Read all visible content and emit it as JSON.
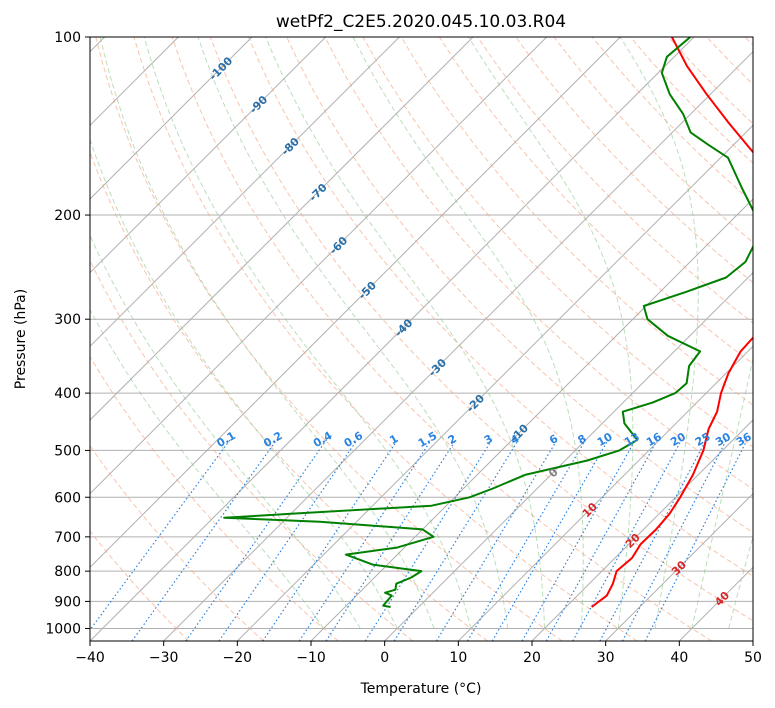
{
  "chart_data": {
    "type": "line",
    "title": "wetPf2_C2E5.2020.045.10.03.R04",
    "xlabel": "Temperature (°C)",
    "ylabel": "Pressure (hPa)",
    "xlim": [
      -40,
      50
    ],
    "ylim": [
      1050,
      100
    ],
    "x_ticks": [
      -40,
      -30,
      -20,
      -10,
      0,
      10,
      20,
      30,
      40,
      50
    ],
    "y_ticks": [
      100,
      200,
      300,
      400,
      500,
      600,
      700,
      800,
      900,
      1000
    ],
    "grid": true,
    "series": [
      {
        "name": "Temperature",
        "color": "#ff0000",
        "points": [
          [
            23.5,
            920
          ],
          [
            24.0,
            880
          ],
          [
            23.2,
            840
          ],
          [
            22.0,
            800
          ],
          [
            22.3,
            760
          ],
          [
            21.6,
            720
          ],
          [
            21.7,
            680
          ],
          [
            21.4,
            640
          ],
          [
            20.6,
            600
          ],
          [
            19.3,
            550
          ],
          [
            17.4,
            500
          ],
          [
            15.2,
            460
          ],
          [
            14.0,
            430
          ],
          [
            12.0,
            400
          ],
          [
            10.3,
            370
          ],
          [
            9.0,
            340
          ],
          [
            8.8,
            320
          ],
          [
            9.3,
            300
          ],
          [
            7.8,
            280
          ],
          [
            4.8,
            260
          ],
          [
            1.5,
            240
          ],
          [
            -2.0,
            220
          ],
          [
            -4.5,
            200
          ],
          [
            -7.0,
            185
          ],
          [
            -11.0,
            170
          ],
          [
            -17.0,
            155
          ],
          [
            -23.5,
            140
          ],
          [
            -30.5,
            125
          ],
          [
            -37.0,
            112
          ],
          [
            -43.0,
            100
          ]
        ]
      },
      {
        "name": "Dewpoint",
        "color": "#008000",
        "points": [
          [
            -3.8,
            920
          ],
          [
            -5.0,
            915
          ],
          [
            -5.2,
            880
          ],
          [
            -6.5,
            870
          ],
          [
            -5.5,
            860
          ],
          [
            -6.2,
            840
          ],
          [
            -5.0,
            820
          ],
          [
            -4.5,
            800
          ],
          [
            -12.0,
            780
          ],
          [
            -17.0,
            750
          ],
          [
            -11.0,
            730
          ],
          [
            -7.5,
            700
          ],
          [
            -10.0,
            680
          ],
          [
            -25.0,
            660
          ],
          [
            -38.5,
            650
          ],
          [
            -30.0,
            640
          ],
          [
            -12.0,
            620
          ],
          [
            -8.0,
            600
          ],
          [
            -6.0,
            580
          ],
          [
            -3.5,
            550
          ],
          [
            3.0,
            520
          ],
          [
            6.0,
            500
          ],
          [
            7.0,
            480
          ],
          [
            3.0,
            450
          ],
          [
            1.2,
            430
          ],
          [
            4.0,
            415
          ],
          [
            5.8,
            400
          ],
          [
            6.0,
            385
          ],
          [
            4.0,
            360
          ],
          [
            3.5,
            340
          ],
          [
            -3.0,
            320
          ],
          [
            -8.0,
            300
          ],
          [
            -10.3,
            285
          ],
          [
            -6.5,
            270
          ],
          [
            -3.0,
            255
          ],
          [
            -2.5,
            240
          ],
          [
            -4.0,
            220
          ],
          [
            -7.5,
            200
          ],
          [
            -13.0,
            180
          ],
          [
            -19.0,
            160
          ],
          [
            -23.5,
            152
          ],
          [
            -27.5,
            145
          ],
          [
            -31.0,
            135
          ],
          [
            -35.5,
            125
          ],
          [
            -39.5,
            115
          ],
          [
            -41.0,
            108
          ],
          [
            -40.5,
            100
          ]
        ]
      }
    ],
    "isotherm_labels": [
      "-100",
      "-90",
      "-80",
      "-70",
      "-60",
      "-50",
      "-40",
      "-30",
      "-20",
      "-10",
      "0"
    ],
    "mixing_ratio_labels": [
      "0.1",
      "0.2",
      "0.4",
      "0.6",
      "1",
      "1.5",
      "2",
      "3",
      "4",
      "6",
      "8",
      "10",
      "13",
      "16",
      "20",
      "25",
      "30",
      "36"
    ],
    "moist_adiabat_labels": [
      "10",
      "20",
      "30",
      "40"
    ]
  }
}
